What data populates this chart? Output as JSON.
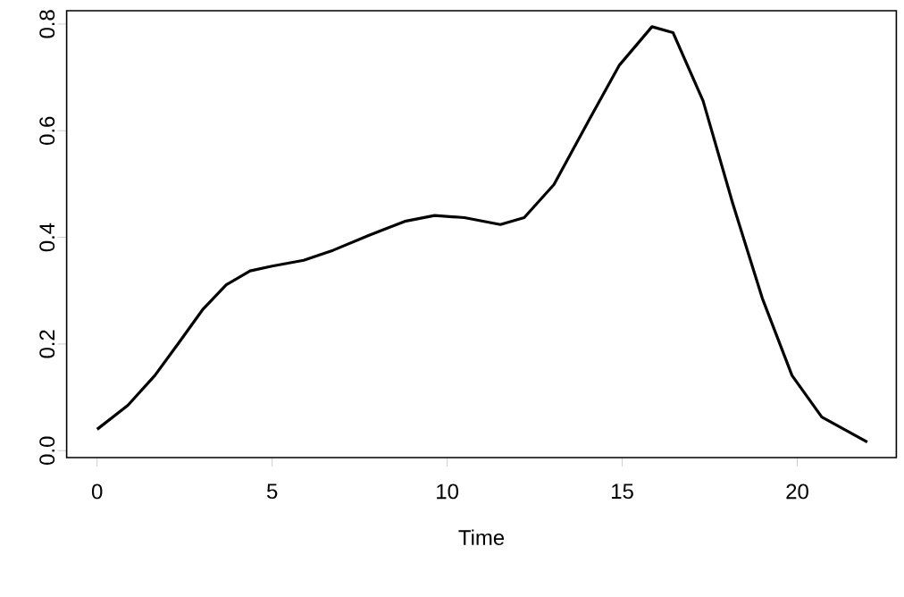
{
  "chart_data": {
    "type": "line",
    "xlabel": "Time",
    "color": "#000000",
    "x": [
      0,
      0.88,
      1.65,
      2.33,
      3.01,
      3.69,
      4.37,
      5,
      5.9,
      6.75,
      7.77,
      8.79,
      9.64,
      10.49,
      11.52,
      12.2,
      13.05,
      14.07,
      14.92,
      15.85,
      16.45,
      17.31,
      18.15,
      19.0,
      19.85,
      20.7,
      22
    ],
    "values": [
      0.04,
      0.085,
      0.141,
      0.202,
      0.264,
      0.311,
      0.337,
      0.346,
      0.357,
      0.376,
      0.404,
      0.43,
      0.441,
      0.437,
      0.424,
      0.437,
      0.499,
      0.622,
      0.723,
      0.795,
      0.784,
      0.656,
      0.465,
      0.286,
      0.141,
      0.063,
      0.016
    ],
    "xlim": [
      -0.87,
      22.83
    ],
    "ylim": [
      -0.013,
      0.825
    ],
    "xticks": [
      0,
      5,
      10,
      15,
      20
    ],
    "yticks": [
      {
        "value": 0,
        "label": "0.0"
      },
      {
        "value": 0.2,
        "label": "0.2"
      },
      {
        "value": 0.4,
        "label": "0.4"
      },
      {
        "value": 0.6,
        "label": "0.6"
      },
      {
        "value": 0.8,
        "label": "0.8"
      }
    ]
  }
}
